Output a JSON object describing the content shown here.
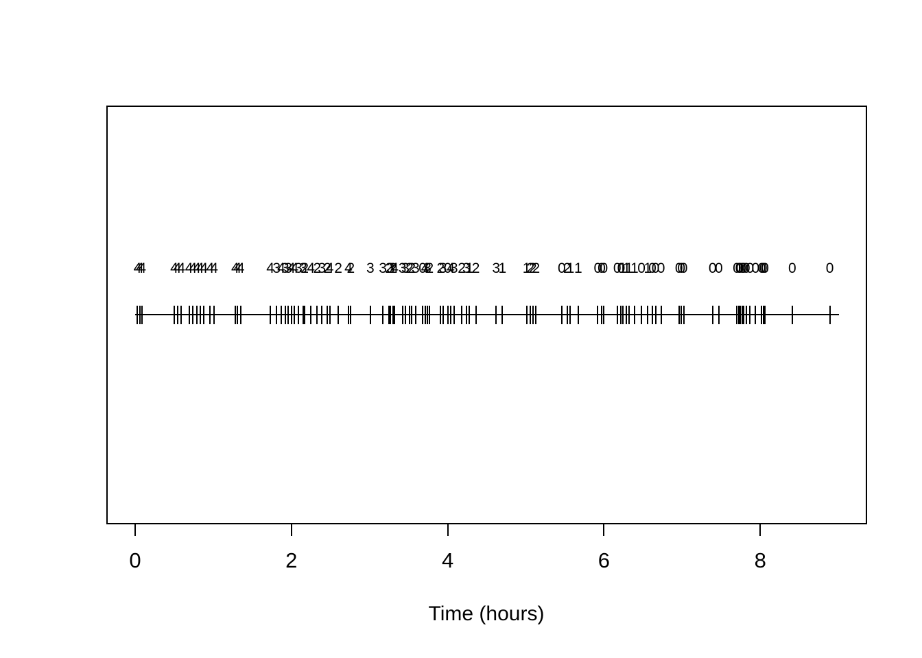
{
  "figure": {
    "background": "#ffffff",
    "foreground": "#000000"
  },
  "chart_data": {
    "type": "scatter",
    "variant": "event-rug-timeline",
    "title": "",
    "xlabel": "Time (hours)",
    "ylabel": "",
    "x_ticks": [
      0,
      2,
      4,
      6,
      8
    ],
    "xlim": [
      -0.36,
      9.36
    ],
    "grid": false,
    "legend": "none",
    "timeline_extent": [
      0,
      9.01
    ],
    "events": {
      "times": [
        0.03,
        0.06,
        0.09,
        0.5,
        0.54,
        0.59,
        0.69,
        0.74,
        0.79,
        0.83,
        0.88,
        0.96,
        1.01,
        1.28,
        1.31,
        1.35,
        1.73,
        1.81,
        1.87,
        1.92,
        1.96,
        2.0,
        2.04,
        2.09,
        2.15,
        2.17,
        2.25,
        2.33,
        2.39,
        2.46,
        2.49,
        2.6,
        2.73,
        2.76,
        3.01,
        3.17,
        3.25,
        3.27,
        3.3,
        3.32,
        3.42,
        3.46,
        3.51,
        3.54,
        3.59,
        3.68,
        3.71,
        3.74,
        3.77,
        3.91,
        3.94,
        4.0,
        4.04,
        4.08,
        4.18,
        4.24,
        4.28,
        4.36,
        4.62,
        4.7,
        5.01,
        5.06,
        5.09,
        5.13,
        5.46,
        5.53,
        5.57,
        5.67,
        5.92,
        5.97,
        6.0,
        6.17,
        6.22,
        6.24,
        6.29,
        6.32,
        6.39,
        6.48,
        6.56,
        6.62,
        6.66,
        6.73,
        6.96,
        6.99,
        7.02,
        7.39,
        7.47,
        7.7,
        7.73,
        7.74,
        7.77,
        7.79,
        7.82,
        7.87,
        7.94,
        8.02,
        8.04,
        8.06,
        8.41,
        8.89
      ],
      "labels": [
        4,
        4,
        4,
        4,
        4,
        4,
        4,
        4,
        4,
        4,
        4,
        4,
        4,
        4,
        4,
        4,
        4,
        3,
        4,
        3,
        3,
        4,
        4,
        3,
        3,
        2,
        4,
        2,
        3,
        2,
        4,
        2,
        4,
        2,
        3,
        3,
        2,
        3,
        2,
        4,
        3,
        3,
        2,
        2,
        3,
        0,
        4,
        3,
        2,
        2,
        3,
        0,
        4,
        3,
        2,
        3,
        1,
        2,
        3,
        1,
        1,
        2,
        2,
        2,
        0,
        2,
        1,
        1,
        0,
        0,
        0,
        0,
        0,
        1,
        1,
        1,
        1,
        0,
        1,
        0,
        0,
        0,
        0,
        0,
        0,
        0,
        0,
        0,
        0,
        0,
        0,
        0,
        0,
        0,
        0,
        0,
        0,
        0,
        0,
        0
      ]
    }
  }
}
